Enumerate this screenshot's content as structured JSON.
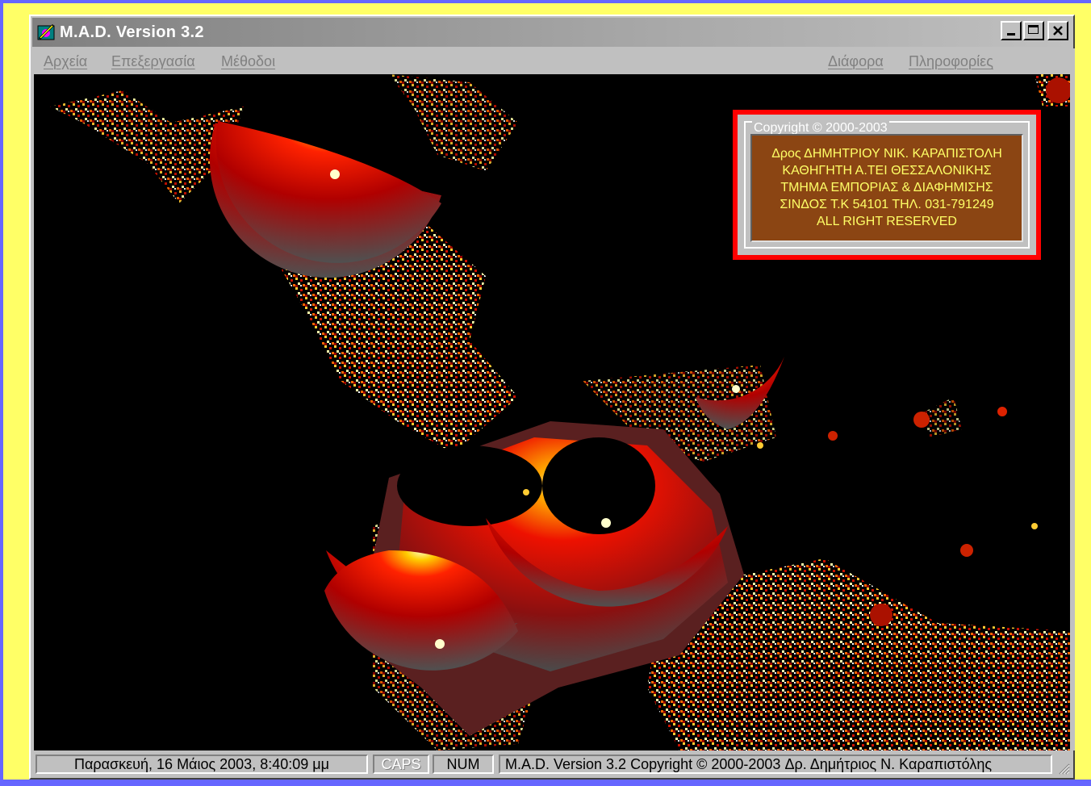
{
  "window": {
    "title": "M.A.D. Version 3.2",
    "icon": "mad-app-icon"
  },
  "menu": {
    "left": [
      {
        "label": "Αρχεία"
      },
      {
        "label": "Επεξεργασία"
      },
      {
        "label": "Μέθοδοι"
      }
    ],
    "right": [
      {
        "label": "Διάφορα"
      },
      {
        "label": "Πληροφορίες"
      }
    ]
  },
  "copyright_box": {
    "legend": "Copyright © 2000-2003",
    "lines": [
      "Δρος ΔΗΜΗΤΡΙΟΥ ΝΙΚ. ΚΑΡΑΠΙΣΤΟΛΗ",
      "ΚΑΘΗΓΗΤΗ  Α.ΤΕΙ ΘΕΣΣΑΛΟΝΙΚΗΣ",
      "ΤΜΗΜΑ ΕΜΠΟΡΙΑΣ & ΔΙΑΦΗΜΙΣΗΣ",
      "ΣΙΝΔΟΣ Τ.Κ 54101 ΤΗΛ. 031-791249",
      "ALL RIGHT RESERVED"
    ],
    "colors": {
      "border": "#ff0000",
      "panel": "#8b4513",
      "text": "#ffff66"
    }
  },
  "status": {
    "datetime": "Παρασκευή, 16 Μάιος 2003, 8:40:09 μμ",
    "caps": "CAPS",
    "num": "NUM",
    "info": "M.A.D. Version 3.2  Copyright © 2000-2003  Δρ. Δημήτριος Ν. Καραπιστόλης"
  },
  "colors": {
    "page_background": "#ffff66",
    "frame": "#6666ff",
    "canvas": "#000000"
  }
}
